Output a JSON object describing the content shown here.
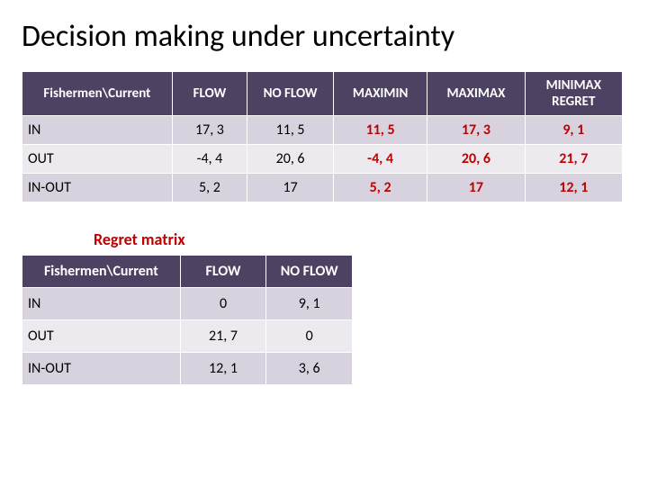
{
  "title": "Decision making under uncertainty",
  "main": {
    "header": {
      "rowhead": "Fishermen\\Current",
      "flow": "FLOW",
      "noflow": "NO FLOW",
      "maximin": "MAXIMIN",
      "maximax": "MAXIMAX",
      "minimax": "MINIMAX REGRET"
    },
    "rows": [
      {
        "label": "IN",
        "flow": "17, 3",
        "noflow": "11, 5",
        "maximin": "11, 5",
        "maximax": "17, 3",
        "minimax": "9, 1"
      },
      {
        "label": "OUT",
        "flow": "-4, 4",
        "noflow": "20, 6",
        "maximin": "-4, 4",
        "maximax": "20, 6",
        "minimax": "21, 7"
      },
      {
        "label": "IN-OUT",
        "flow": "5, 2",
        "noflow": "17",
        "maximin": "5, 2",
        "maximax": "17",
        "minimax": "12, 1"
      }
    ],
    "colors": {
      "header_bg": "#4e4262",
      "header_text": "#ffffff",
      "row_light": "#d7d2de",
      "row_dark": "#ece9ef",
      "highlight_text": "#c00000"
    }
  },
  "regret_label": "Regret matrix",
  "regret": {
    "header": {
      "rowhead": "Fishermen\\Current",
      "flow": "FLOW",
      "noflow": "NO FLOW"
    },
    "rows": [
      {
        "label": "IN",
        "flow": "0",
        "noflow": "9, 1"
      },
      {
        "label": "OUT",
        "flow": "21, 7",
        "noflow": "0"
      },
      {
        "label": "IN-OUT",
        "flow": "12, 1",
        "noflow": "3, 6"
      }
    ]
  }
}
